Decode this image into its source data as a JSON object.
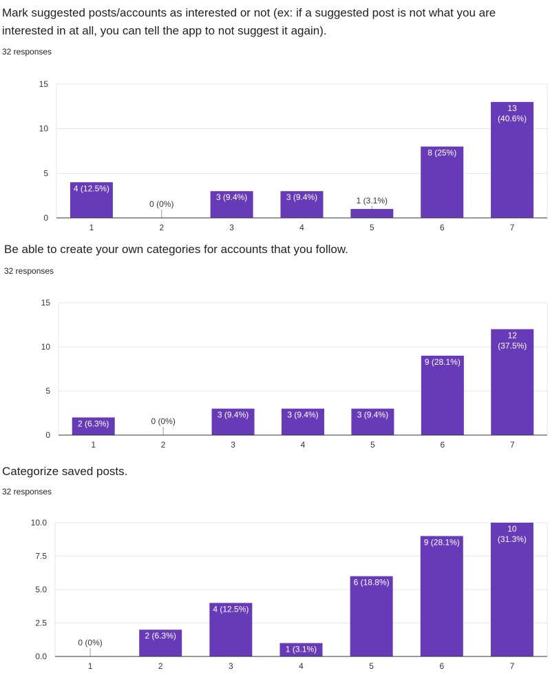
{
  "colors": {
    "bar": "#673ab7",
    "grid": "#e6e6e6",
    "axis": "#333333"
  },
  "questions": [
    {
      "title": "Mark suggested posts/accounts as interested or not (ex: if a suggested post is not what you are interested in at all, you can tell the app to not suggest it again).",
      "responses": "32 responses"
    },
    {
      "title": "Be able to create your own categories for accounts that you follow.",
      "responses": "32 responses"
    },
    {
      "title": "Categorize saved posts.",
      "responses": "32 responses"
    }
  ],
  "chart_data": [
    {
      "type": "bar",
      "title": "Mark suggested posts/accounts as interested or not (ex: if a suggested post is not what you are interested in at all, you can tell the app to not suggest it again).",
      "categories": [
        "1",
        "2",
        "3",
        "4",
        "5",
        "6",
        "7"
      ],
      "values": [
        4,
        0,
        3,
        3,
        1,
        8,
        13
      ],
      "labels": [
        "4 (12.5%)",
        "0 (0%)",
        "3 (9.4%)",
        "3 (9.4%)",
        "1 (3.1%)",
        "8 (25%)",
        "13 (40.6%)"
      ],
      "ylim": [
        0,
        15
      ],
      "yticks": [
        "0",
        "5",
        "10",
        "15"
      ],
      "ytick_values": [
        0,
        5,
        10,
        15
      ],
      "xlabel": "",
      "ylabel": ""
    },
    {
      "type": "bar",
      "title": "Be able to create your own categories for accounts that you follow.",
      "categories": [
        "1",
        "2",
        "3",
        "4",
        "5",
        "6",
        "7"
      ],
      "values": [
        2,
        0,
        3,
        3,
        3,
        9,
        12
      ],
      "labels": [
        "2 (6.3%)",
        "0 (0%)",
        "3 (9.4%)",
        "3 (9.4%)",
        "3 (9.4%)",
        "9 (28.1%)",
        "12 (37.5%)"
      ],
      "ylim": [
        0,
        15
      ],
      "yticks": [
        "0",
        "5",
        "10",
        "15"
      ],
      "ytick_values": [
        0,
        5,
        10,
        15
      ],
      "xlabel": "",
      "ylabel": ""
    },
    {
      "type": "bar",
      "title": "Categorize saved posts.",
      "categories": [
        "1",
        "2",
        "3",
        "4",
        "5",
        "6",
        "7"
      ],
      "values": [
        0,
        2,
        4,
        1,
        6,
        9,
        10
      ],
      "labels": [
        "0 (0%)",
        "2 (6.3%)",
        "4 (12.5%)",
        "1 (3.1%)",
        "6 (18.8%)",
        "9 (28.1%)",
        "10 (31.3%)"
      ],
      "ylim": [
        0,
        10
      ],
      "yticks": [
        "0.0",
        "2.5",
        "5.0",
        "7.5",
        "10.0"
      ],
      "ytick_values": [
        0,
        2.5,
        5,
        7.5,
        10
      ],
      "xlabel": "",
      "ylabel": ""
    }
  ]
}
